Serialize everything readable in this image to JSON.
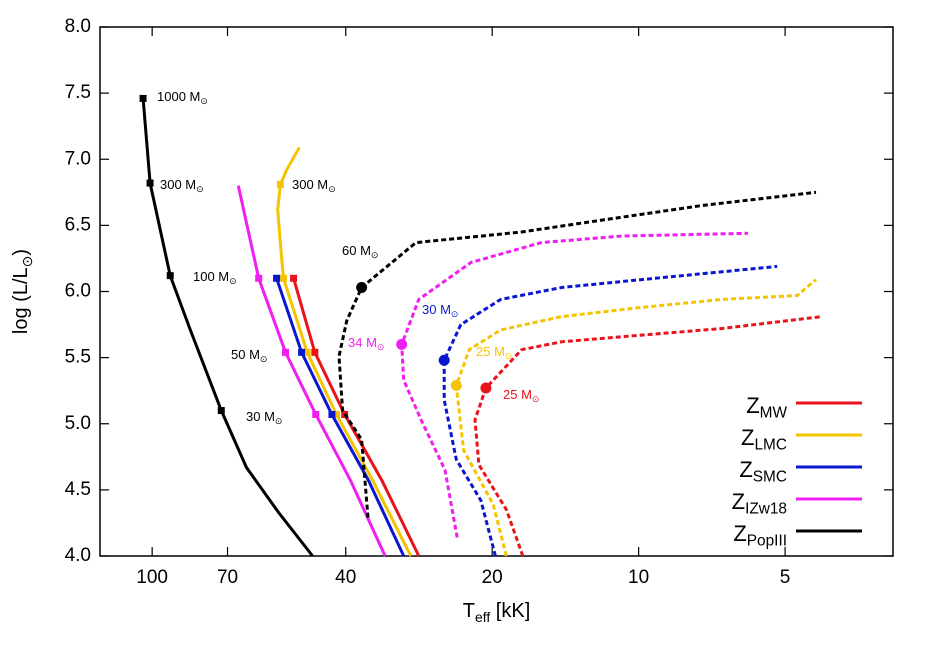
{
  "chart_data": {
    "type": "hrd",
    "x_label": {
      "main": "T",
      "sub": "eff",
      "rest": " [kK]"
    },
    "y_label": {
      "main": "log (L/L",
      "sub": "⊙",
      "rest": ")"
    },
    "xlim": [
      128,
      3
    ],
    "xlog": true,
    "xticks": [
      100,
      70,
      40,
      20,
      10,
      5
    ],
    "ylim": [
      4,
      8
    ],
    "yticks": [
      {
        "value": 4,
        "label": "4.0"
      },
      {
        "value": 4.5,
        "label": "4.5"
      },
      {
        "value": 5,
        "label": "5.0"
      },
      {
        "value": 5.5,
        "label": "5.5"
      },
      {
        "value": 6,
        "label": "6.0"
      },
      {
        "value": 6.5,
        "label": "6.5"
      },
      {
        "value": 7,
        "label": "7.0"
      },
      {
        "value": 7.5,
        "label": "7.5"
      },
      {
        "value": 8,
        "label": "8.0"
      }
    ],
    "series": [
      {
        "name": "Z",
        "name_sub": "MW",
        "color": "#e8131b",
        "zams": {
          "x": [
            51.2,
            46.3,
            40.2,
            33.7,
            28.3
          ],
          "y": [
            6.1,
            5.54,
            5.07,
            4.57,
            4.0
          ],
          "squares": [
            0,
            1,
            2
          ]
        },
        "track": {
          "x": [
            17.3,
            18.7,
            21.3,
            21.7,
            20.6,
            17.4,
            14.4,
            9.86,
            6.74,
            4.2
          ],
          "y": [
            4.0,
            4.35,
            4.69,
            5.03,
            5.27,
            5.56,
            5.62,
            5.67,
            5.72,
            5.81
          ],
          "circle": 4
        }
      },
      {
        "name": "Z",
        "name_sub": "LMC",
        "color": "#f5c400",
        "zams": {
          "x": [
            49.8,
            52.9,
            54.5,
            55.2,
            54.5,
            53.7,
            48.0,
            41.8,
            35.2,
            29.4
          ],
          "y": [
            7.09,
            6.92,
            6.81,
            6.62,
            6.36,
            6.1,
            5.54,
            5.07,
            4.57,
            4.0
          ],
          "squares": [
            2,
            5,
            6,
            7
          ]
        },
        "track": {
          "x": [
            18.7,
            19.9,
            22.9,
            23.7,
            22.3,
            19.2,
            14.4,
            9.86,
            6.74,
            4.72,
            4.32
          ],
          "y": [
            4.0,
            4.39,
            4.8,
            5.29,
            5.56,
            5.71,
            5.81,
            5.88,
            5.94,
            5.97,
            6.09
          ],
          "circle": 3
        }
      },
      {
        "name": "Z",
        "name_sub": "SMC",
        "color": "#0a16d0",
        "zams": {
          "x": [
            55.5,
            49.3,
            42.7,
            35.9,
            30.4
          ],
          "y": [
            6.1,
            5.54,
            5.07,
            4.57,
            4.0
          ],
          "squares": [
            0,
            1,
            2
          ]
        },
        "track": {
          "x": [
            19.7,
            21.1,
            23.7,
            25.1,
            25.1,
            23.2,
            19.2,
            14.4,
            9.86,
            5.19
          ],
          "y": [
            4.0,
            4.42,
            4.73,
            5.18,
            5.48,
            5.75,
            5.94,
            6.03,
            6.09,
            6.19
          ],
          "circle": 4
        }
      },
      {
        "name": "Z",
        "name_sub": "IZw18",
        "color": "#f01ef0",
        "zams": {
          "x": [
            66.5,
            60.4,
            53.2,
            46.1,
            39.1,
            33.2
          ],
          "y": [
            6.8,
            6.1,
            5.54,
            5.07,
            4.57,
            4.0
          ],
          "squares": [
            1,
            2,
            3
          ]
        },
        "track": {
          "x": [
            23.6,
            25.0,
            28.0,
            30.4,
            30.7,
            28.3,
            22.1,
            15.85,
            10.8,
            5.96
          ],
          "y": [
            4.14,
            4.65,
            5.03,
            5.33,
            5.6,
            5.94,
            6.22,
            6.37,
            6.42,
            6.44
          ],
          "circle": 4
        }
      },
      {
        "name": "Z",
        "name_sub": "PopIII",
        "color": "#000000",
        "zams": {
          "x": [
            104.4,
            101,
            91.8,
            83.5,
            72.1,
            64.0,
            55.0,
            46.8
          ],
          "y": [
            7.46,
            6.82,
            6.12,
            5.71,
            5.1,
            4.67,
            4.33,
            4.0
          ],
          "squares": [
            0,
            1,
            2,
            4
          ]
        },
        "track": {
          "x": [
            36.0,
            37.1,
            40.6,
            41.3,
            39.8,
            37.1,
            28.7,
            17.4,
            11.9,
            7.41,
            4.32
          ],
          "y": [
            4.29,
            4.88,
            5.1,
            5.51,
            5.78,
            6.03,
            6.37,
            6.45,
            6.54,
            6.65,
            6.75
          ],
          "circle": 5
        }
      }
    ],
    "annotations": [
      {
        "text": "1000 M",
        "sub": "⊙",
        "color": "#000000"
      },
      {
        "text": "300 M",
        "sub": "⊙",
        "color": "#000000"
      },
      {
        "text": "300 M",
        "sub": "⊙",
        "color": "#000000"
      },
      {
        "text": "100 M",
        "sub": "⊙",
        "color": "#000000"
      },
      {
        "text": "50 M",
        "sub": "⊙",
        "color": "#000000"
      },
      {
        "text": "30 M",
        "sub": "⊙",
        "color": "#000000"
      },
      {
        "text": "60 M",
        "sub": "⊙",
        "color": "#000000"
      },
      {
        "text": "34 M",
        "sub": "⊙",
        "color": "#f01ef0"
      },
      {
        "text": "30 M",
        "sub": "⊙",
        "color": "#0a16d0"
      },
      {
        "text": "25 M",
        "sub": "⊙",
        "color": "#f5c400"
      },
      {
        "text": "25 M",
        "sub": "⊙",
        "color": "#e8131b"
      }
    ]
  }
}
